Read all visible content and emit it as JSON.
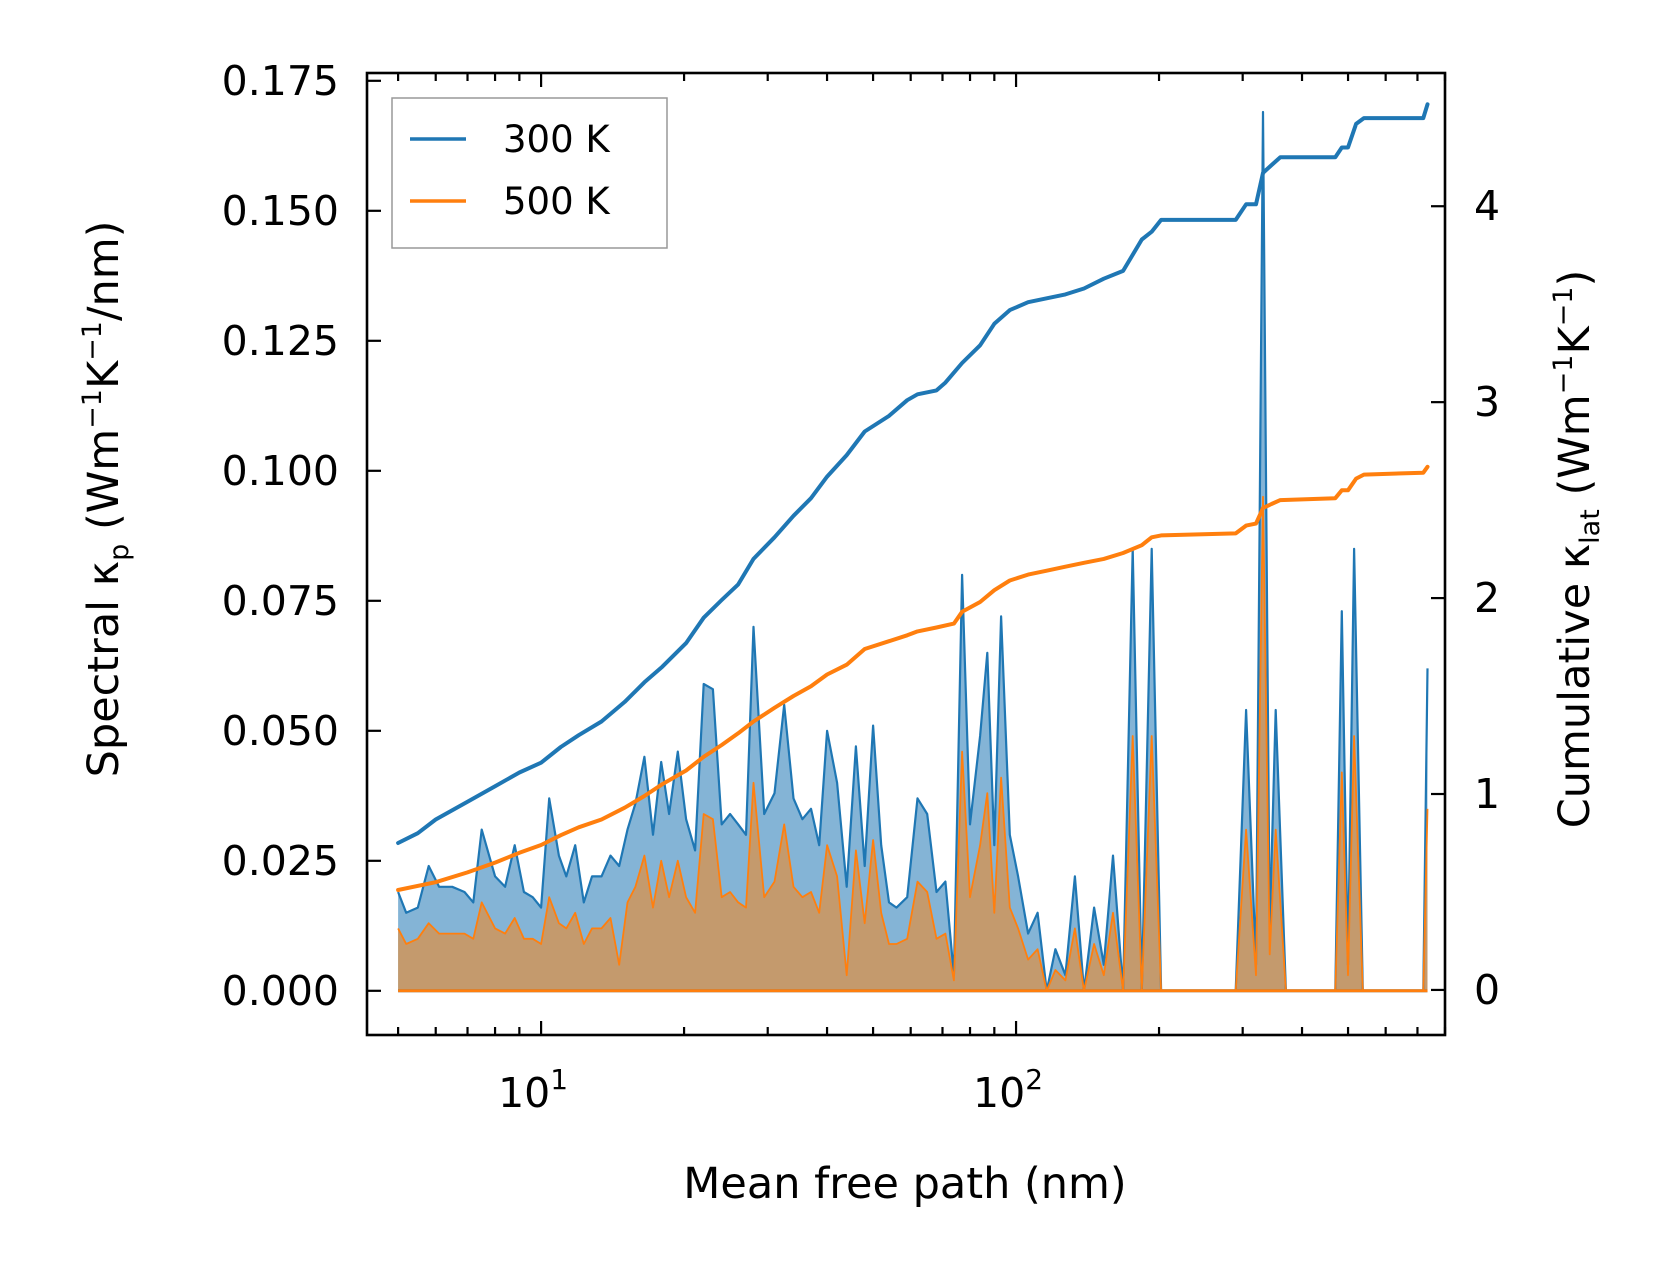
{
  "chart_data": {
    "type": "line",
    "xscale": "log",
    "xlabel": "Mean free path (nm)",
    "ylabel_left": {
      "pre": "Spectral κ",
      "sub": "p",
      "mid": " (Wm",
      "sup1": "−1",
      "k": "K",
      "sup2": "−1",
      "post": "/nm)"
    },
    "ylabel_right": {
      "pre": "Cumulative κ",
      "sub": "lat",
      "mid": " (Wm",
      "sup1": "−1",
      "k": "K",
      "sup2": "−1",
      "post": ")"
    },
    "xlim": [
      4.3,
      800
    ],
    "ylim_left": [
      -0.0085,
      0.1765
    ],
    "ylim_right": [
      -0.23,
      4.68
    ],
    "x_tick_labels": [
      {
        "base": "10",
        "exp": "1",
        "value": 10
      },
      {
        "base": "10",
        "exp": "2",
        "value": 100
      }
    ],
    "y_left_ticks": [
      0.0,
      0.025,
      0.05,
      0.075,
      0.1,
      0.125,
      0.15,
      0.175
    ],
    "y_left_tick_labels": [
      "0.000",
      "0.025",
      "0.050",
      "0.075",
      "0.100",
      "0.125",
      "0.150",
      "0.175"
    ],
    "y_right_ticks": [
      0,
      1,
      2,
      3,
      4
    ],
    "y_right_tick_labels": [
      "0",
      "1",
      "2",
      "3",
      "4"
    ],
    "colors": {
      "series_300": "#1f77b4",
      "series_500": "#ff7f0e",
      "fill_300": "#1f77b4",
      "fill_500": "#d9924a"
    },
    "legend": {
      "position": "top-left",
      "entries": [
        "300 K",
        "500 K"
      ]
    },
    "spectral": [
      {
        "name": "300 K",
        "points": [
          [
            5,
            0.019
          ],
          [
            5.2,
            0.015
          ],
          [
            5.5,
            0.016
          ],
          [
            5.8,
            0.024
          ],
          [
            6.1,
            0.02
          ],
          [
            6.5,
            0.02
          ],
          [
            6.9,
            0.019
          ],
          [
            7.2,
            0.017
          ],
          [
            7.5,
            0.031
          ],
          [
            8,
            0.022
          ],
          [
            8.4,
            0.02
          ],
          [
            8.8,
            0.028
          ],
          [
            9.2,
            0.019
          ],
          [
            9.6,
            0.018
          ],
          [
            10,
            0.016
          ],
          [
            10.4,
            0.037
          ],
          [
            10.9,
            0.026
          ],
          [
            11.3,
            0.022
          ],
          [
            11.8,
            0.028
          ],
          [
            12.3,
            0.017
          ],
          [
            12.8,
            0.022
          ],
          [
            13.4,
            0.022
          ],
          [
            14,
            0.026
          ],
          [
            14.6,
            0.024
          ],
          [
            15.2,
            0.031
          ],
          [
            15.8,
            0.036
          ],
          [
            16.5,
            0.045
          ],
          [
            17.2,
            0.03
          ],
          [
            17.9,
            0.044
          ],
          [
            18.6,
            0.034
          ],
          [
            19.4,
            0.046
          ],
          [
            20.2,
            0.033
          ],
          [
            21.1,
            0.027
          ],
          [
            22,
            0.059
          ],
          [
            23,
            0.058
          ],
          [
            24,
            0.032
          ],
          [
            25,
            0.034
          ],
          [
            26,
            0.032
          ],
          [
            27,
            0.03
          ],
          [
            28,
            0.07
          ],
          [
            29.5,
            0.034
          ],
          [
            31,
            0.038
          ],
          [
            32.5,
            0.055
          ],
          [
            34,
            0.037
          ],
          [
            35.5,
            0.033
          ],
          [
            37,
            0.035
          ],
          [
            38.5,
            0.028
          ],
          [
            40,
            0.05
          ],
          [
            42,
            0.04
          ],
          [
            44,
            0.02
          ],
          [
            46,
            0.047
          ],
          [
            48,
            0.024
          ],
          [
            50,
            0.051
          ],
          [
            52,
            0.028
          ],
          [
            54,
            0.017
          ],
          [
            56,
            0.016
          ],
          [
            59,
            0.018
          ],
          [
            62,
            0.037
          ],
          [
            65,
            0.034
          ],
          [
            68,
            0.019
          ],
          [
            71,
            0.021
          ],
          [
            74,
            0.003
          ],
          [
            77,
            0.08
          ],
          [
            80,
            0.032
          ],
          [
            84,
            0.049
          ],
          [
            87,
            0.065
          ],
          [
            90,
            0.028
          ],
          [
            93,
            0.072
          ],
          [
            97,
            0.03
          ],
          [
            101,
            0.022
          ],
          [
            106,
            0.011
          ],
          [
            111,
            0.015
          ],
          [
            116,
            0
          ],
          [
            121,
            0.008
          ],
          [
            127,
            0.003
          ],
          [
            133,
            0.022
          ],
          [
            139,
            0
          ],
          [
            146,
            0.016
          ],
          [
            153,
            0.005
          ],
          [
            160,
            0.026
          ],
          [
            168,
            0
          ],
          [
            176,
            0.085
          ],
          [
            184,
            0
          ],
          [
            193,
            0.085
          ],
          [
            202,
            0
          ],
          [
            290,
            0
          ],
          [
            305,
            0.054
          ],
          [
            320,
            0.005
          ],
          [
            331,
            0.169
          ],
          [
            342,
            0.012
          ],
          [
            352,
            0.054
          ],
          [
            370,
            0
          ],
          [
            470,
            0
          ],
          [
            485,
            0.073
          ],
          [
            500,
            0.005
          ],
          [
            515,
            0.085
          ],
          [
            537,
            0
          ],
          [
            720,
            0
          ],
          [
            735,
            0.062
          ]
        ]
      },
      {
        "name": "500 K",
        "points": [
          [
            5,
            0.012
          ],
          [
            5.2,
            0.009
          ],
          [
            5.5,
            0.01
          ],
          [
            5.8,
            0.013
          ],
          [
            6.1,
            0.011
          ],
          [
            6.5,
            0.011
          ],
          [
            6.9,
            0.011
          ],
          [
            7.2,
            0.01
          ],
          [
            7.5,
            0.017
          ],
          [
            8,
            0.012
          ],
          [
            8.4,
            0.011
          ],
          [
            8.8,
            0.014
          ],
          [
            9.2,
            0.01
          ],
          [
            9.6,
            0.01
          ],
          [
            10,
            0.009
          ],
          [
            10.4,
            0.018
          ],
          [
            10.9,
            0.013
          ],
          [
            11.3,
            0.012
          ],
          [
            11.8,
            0.015
          ],
          [
            12.3,
            0.009
          ],
          [
            12.8,
            0.012
          ],
          [
            13.4,
            0.012
          ],
          [
            14,
            0.014
          ],
          [
            14.6,
            0.005
          ],
          [
            15.2,
            0.017
          ],
          [
            15.8,
            0.02
          ],
          [
            16.5,
            0.026
          ],
          [
            17.2,
            0.016
          ],
          [
            17.9,
            0.025
          ],
          [
            18.6,
            0.018
          ],
          [
            19.4,
            0.025
          ],
          [
            20.2,
            0.018
          ],
          [
            21.1,
            0.015
          ],
          [
            22,
            0.034
          ],
          [
            23,
            0.033
          ],
          [
            24,
            0.018
          ],
          [
            25,
            0.019
          ],
          [
            26,
            0.017
          ],
          [
            27,
            0.016
          ],
          [
            28,
            0.04
          ],
          [
            29.5,
            0.018
          ],
          [
            31,
            0.021
          ],
          [
            32.5,
            0.032
          ],
          [
            34,
            0.02
          ],
          [
            35.5,
            0.018
          ],
          [
            37,
            0.019
          ],
          [
            38.5,
            0.015
          ],
          [
            40,
            0.028
          ],
          [
            42,
            0.022
          ],
          [
            44,
            0.003
          ],
          [
            46,
            0.027
          ],
          [
            48,
            0.013
          ],
          [
            50,
            0.029
          ],
          [
            52,
            0.015
          ],
          [
            54,
            0.009
          ],
          [
            56,
            0.009
          ],
          [
            59,
            0.01
          ],
          [
            62,
            0.021
          ],
          [
            65,
            0.019
          ],
          [
            68,
            0.01
          ],
          [
            71,
            0.011
          ],
          [
            74,
            0.002
          ],
          [
            77,
            0.046
          ],
          [
            80,
            0.018
          ],
          [
            84,
            0.028
          ],
          [
            87,
            0.038
          ],
          [
            90,
            0.015
          ],
          [
            93,
            0.041
          ],
          [
            97,
            0.016
          ],
          [
            101,
            0.012
          ],
          [
            106,
            0.006
          ],
          [
            111,
            0.008
          ],
          [
            116,
            0
          ],
          [
            121,
            0.004
          ],
          [
            127,
            0.002
          ],
          [
            133,
            0.012
          ],
          [
            139,
            0
          ],
          [
            146,
            0.009
          ],
          [
            153,
            0.003
          ],
          [
            160,
            0.015
          ],
          [
            168,
            0
          ],
          [
            176,
            0.049
          ],
          [
            184,
            0
          ],
          [
            193,
            0.049
          ],
          [
            202,
            0
          ],
          [
            290,
            0
          ],
          [
            305,
            0.031
          ],
          [
            320,
            0.003
          ],
          [
            331,
            0.095
          ],
          [
            342,
            0.007
          ],
          [
            352,
            0.031
          ],
          [
            370,
            0
          ],
          [
            470,
            0
          ],
          [
            485,
            0.042
          ],
          [
            500,
            0.003
          ],
          [
            515,
            0.049
          ],
          [
            537,
            0
          ],
          [
            720,
            0
          ],
          [
            735,
            0.035
          ]
        ]
      }
    ],
    "cumulative": [
      {
        "name": "300 K",
        "points": [
          [
            5,
            0.75
          ],
          [
            5.5,
            0.8
          ],
          [
            6,
            0.87
          ],
          [
            7,
            0.96
          ],
          [
            8,
            1.04
          ],
          [
            9,
            1.11
          ],
          [
            10,
            1.16
          ],
          [
            11,
            1.24
          ],
          [
            12,
            1.3
          ],
          [
            13.4,
            1.37
          ],
          [
            15,
            1.47
          ],
          [
            16.5,
            1.57
          ],
          [
            18,
            1.65
          ],
          [
            20.2,
            1.77
          ],
          [
            22,
            1.9
          ],
          [
            24,
            1.99
          ],
          [
            26,
            2.07
          ],
          [
            28,
            2.2
          ],
          [
            31,
            2.31
          ],
          [
            34,
            2.42
          ],
          [
            37,
            2.51
          ],
          [
            40,
            2.62
          ],
          [
            44,
            2.73
          ],
          [
            48,
            2.85
          ],
          [
            54,
            2.93
          ],
          [
            59,
            3.01
          ],
          [
            62,
            3.04
          ],
          [
            68,
            3.06
          ],
          [
            71,
            3.1
          ],
          [
            77,
            3.2
          ],
          [
            84,
            3.29
          ],
          [
            90,
            3.4
          ],
          [
            97,
            3.47
          ],
          [
            106,
            3.51
          ],
          [
            116,
            3.53
          ],
          [
            127,
            3.55
          ],
          [
            139,
            3.58
          ],
          [
            153,
            3.63
          ],
          [
            168,
            3.67
          ],
          [
            184,
            3.83
          ],
          [
            193,
            3.87
          ],
          [
            202,
            3.93
          ],
          [
            290,
            3.93
          ],
          [
            305,
            4.01
          ],
          [
            320,
            4.01
          ],
          [
            331,
            4.17
          ],
          [
            345,
            4.21
          ],
          [
            360,
            4.25
          ],
          [
            470,
            4.25
          ],
          [
            485,
            4.3
          ],
          [
            500,
            4.3
          ],
          [
            520,
            4.42
          ],
          [
            540,
            4.45
          ],
          [
            720,
            4.45
          ],
          [
            735,
            4.52
          ]
        ]
      },
      {
        "name": "500 K",
        "points": [
          [
            5,
            0.51
          ],
          [
            6,
            0.55
          ],
          [
            7,
            0.6
          ],
          [
            8,
            0.65
          ],
          [
            9,
            0.7
          ],
          [
            10,
            0.74
          ],
          [
            11,
            0.79
          ],
          [
            12,
            0.83
          ],
          [
            13.4,
            0.87
          ],
          [
            15,
            0.93
          ],
          [
            16.5,
            0.99
          ],
          [
            18,
            1.05
          ],
          [
            20.2,
            1.12
          ],
          [
            22,
            1.19
          ],
          [
            24,
            1.25
          ],
          [
            26,
            1.31
          ],
          [
            28,
            1.37
          ],
          [
            31,
            1.44
          ],
          [
            34,
            1.5
          ],
          [
            37,
            1.55
          ],
          [
            40,
            1.61
          ],
          [
            44,
            1.66
          ],
          [
            48,
            1.74
          ],
          [
            54,
            1.78
          ],
          [
            59,
            1.81
          ],
          [
            62,
            1.83
          ],
          [
            68,
            1.85
          ],
          [
            74,
            1.87
          ],
          [
            77,
            1.93
          ],
          [
            84,
            1.98
          ],
          [
            90,
            2.04
          ],
          [
            97,
            2.09
          ],
          [
            106,
            2.12
          ],
          [
            116,
            2.14
          ],
          [
            127,
            2.16
          ],
          [
            139,
            2.18
          ],
          [
            153,
            2.2
          ],
          [
            168,
            2.23
          ],
          [
            184,
            2.27
          ],
          [
            193,
            2.31
          ],
          [
            202,
            2.32
          ],
          [
            290,
            2.33
          ],
          [
            305,
            2.37
          ],
          [
            320,
            2.38
          ],
          [
            331,
            2.46
          ],
          [
            345,
            2.48
          ],
          [
            360,
            2.5
          ],
          [
            470,
            2.51
          ],
          [
            485,
            2.55
          ],
          [
            500,
            2.55
          ],
          [
            520,
            2.61
          ],
          [
            540,
            2.63
          ],
          [
            720,
            2.64
          ],
          [
            735,
            2.67
          ]
        ]
      }
    ]
  }
}
